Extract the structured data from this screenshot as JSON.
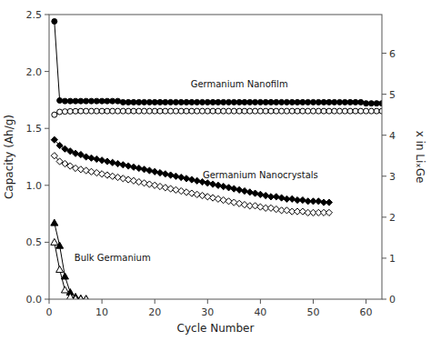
{
  "chart_data": {
    "type": "line",
    "xlabel": "Cycle Number",
    "ylabel": "Capacity (Ah/g)",
    "y2label": "x in LiₓGe",
    "xlim": [
      0,
      63
    ],
    "ylim": [
      0,
      2.5
    ],
    "y2lim": [
      0,
      6.944
    ],
    "xticks": [
      0,
      10,
      20,
      30,
      40,
      50,
      60
    ],
    "yticks": [
      {
        "value": 0.0,
        "label": "0.0"
      },
      0.5,
      {
        "value": 1.0,
        "label": "1.0"
      },
      1.5,
      {
        "value": 2.0,
        "label": "2.0"
      },
      2.5
    ],
    "y2ticks": [
      0,
      1,
      2,
      3,
      4,
      5,
      6
    ],
    "grid": false,
    "annotations": [
      {
        "text": "Germanium Nanofilm",
        "x": 36,
        "y": 1.83
      },
      {
        "text": "Germanium Nanocrystals",
        "x": 40,
        "y": 1.03
      },
      {
        "text": "Bulk Germanium",
        "x": 12,
        "y": 0.3
      }
    ],
    "series": [
      {
        "color": "#000000",
        "marker": "circle",
        "line_style": "solid",
        "x": [
          1,
          2,
          3,
          4,
          5,
          6,
          7,
          8,
          9,
          10,
          11,
          12,
          13,
          14,
          15,
          16,
          17,
          18,
          19,
          20,
          21,
          22,
          23,
          24,
          25,
          26,
          27,
          28,
          29,
          30,
          31,
          32,
          33,
          34,
          35,
          36,
          37,
          38,
          39,
          40,
          41,
          42,
          43,
          44,
          45,
          46,
          47,
          48,
          49,
          50,
          51,
          52,
          53,
          54,
          55,
          56,
          57,
          58,
          59,
          60,
          61,
          62,
          63
        ],
        "values": [
          2.44,
          1.745,
          1.74,
          1.74,
          1.74,
          1.74,
          1.74,
          1.74,
          1.74,
          1.74,
          1.74,
          1.74,
          1.74,
          1.73,
          1.73,
          1.73,
          1.73,
          1.73,
          1.73,
          1.73,
          1.73,
          1.73,
          1.73,
          1.73,
          1.73,
          1.73,
          1.73,
          1.73,
          1.73,
          1.73,
          1.73,
          1.73,
          1.73,
          1.73,
          1.73,
          1.73,
          1.73,
          1.73,
          1.73,
          1.73,
          1.73,
          1.73,
          1.73,
          1.73,
          1.73,
          1.73,
          1.73,
          1.73,
          1.73,
          1.73,
          1.73,
          1.73,
          1.73,
          1.73,
          1.73,
          1.73,
          1.73,
          1.73,
          1.73,
          1.72,
          1.72,
          1.72,
          1.72
        ]
      },
      {
        "color": "#000000",
        "marker": "open-circle",
        "line_style": "solid",
        "x": [
          1,
          2,
          3,
          4,
          5,
          6,
          7,
          8,
          9,
          10,
          11,
          12,
          13,
          14,
          15,
          16,
          17,
          18,
          19,
          20,
          21,
          22,
          23,
          24,
          25,
          26,
          27,
          28,
          29,
          30,
          31,
          32,
          33,
          34,
          35,
          36,
          37,
          38,
          39,
          40,
          41,
          42,
          43,
          44,
          45,
          46,
          47,
          48,
          49,
          50,
          51,
          52,
          53,
          54,
          55,
          56,
          57,
          58,
          59,
          60,
          61,
          62,
          63
        ],
        "values": [
          1.62,
          1.645,
          1.648,
          1.65,
          1.651,
          1.652,
          1.652,
          1.652,
          1.652,
          1.652,
          1.652,
          1.652,
          1.652,
          1.652,
          1.652,
          1.652,
          1.652,
          1.652,
          1.652,
          1.652,
          1.652,
          1.652,
          1.652,
          1.652,
          1.652,
          1.652,
          1.652,
          1.652,
          1.652,
          1.652,
          1.652,
          1.652,
          1.652,
          1.652,
          1.652,
          1.652,
          1.652,
          1.652,
          1.652,
          1.652,
          1.652,
          1.652,
          1.652,
          1.652,
          1.652,
          1.652,
          1.652,
          1.652,
          1.652,
          1.652,
          1.652,
          1.652,
          1.652,
          1.652,
          1.652,
          1.652,
          1.652,
          1.652,
          1.652,
          1.652,
          1.652,
          1.652,
          1.652
        ]
      },
      {
        "color": "#000000",
        "marker": "diamond",
        "line_style": "solid",
        "x": [
          1,
          2,
          3,
          4,
          5,
          6,
          7,
          8,
          9,
          10,
          11,
          12,
          13,
          14,
          15,
          16,
          17,
          18,
          19,
          20,
          21,
          22,
          23,
          24,
          25,
          26,
          27,
          28,
          29,
          30,
          31,
          32,
          33,
          34,
          35,
          36,
          37,
          38,
          39,
          40,
          41,
          42,
          43,
          44,
          45,
          46,
          47,
          48,
          49,
          50,
          51,
          52,
          53
        ],
        "values": [
          1.4,
          1.35,
          1.32,
          1.3,
          1.28,
          1.27,
          1.25,
          1.24,
          1.23,
          1.22,
          1.21,
          1.2,
          1.19,
          1.18,
          1.17,
          1.16,
          1.15,
          1.14,
          1.13,
          1.12,
          1.11,
          1.1,
          1.09,
          1.08,
          1.07,
          1.06,
          1.05,
          1.04,
          1.03,
          1.02,
          1.01,
          1.0,
          0.99,
          0.98,
          0.97,
          0.96,
          0.95,
          0.94,
          0.93,
          0.92,
          0.91,
          0.9,
          0.9,
          0.89,
          0.88,
          0.88,
          0.87,
          0.87,
          0.86,
          0.86,
          0.86,
          0.85,
          0.85
        ]
      },
      {
        "color": "#000000",
        "marker": "open-diamond",
        "line_style": "solid",
        "x": [
          1,
          2,
          3,
          4,
          5,
          6,
          7,
          8,
          9,
          10,
          11,
          12,
          13,
          14,
          15,
          16,
          17,
          18,
          19,
          20,
          21,
          22,
          23,
          24,
          25,
          26,
          27,
          28,
          29,
          30,
          31,
          32,
          33,
          34,
          35,
          36,
          37,
          38,
          39,
          40,
          41,
          42,
          43,
          44,
          45,
          46,
          47,
          48,
          49,
          50,
          51,
          52,
          53
        ],
        "values": [
          1.26,
          1.21,
          1.19,
          1.17,
          1.15,
          1.14,
          1.13,
          1.12,
          1.11,
          1.1,
          1.09,
          1.08,
          1.07,
          1.06,
          1.05,
          1.04,
          1.03,
          1.02,
          1.01,
          1.0,
          0.99,
          0.98,
          0.97,
          0.96,
          0.95,
          0.94,
          0.93,
          0.92,
          0.91,
          0.9,
          0.89,
          0.88,
          0.87,
          0.86,
          0.85,
          0.84,
          0.83,
          0.82,
          0.82,
          0.81,
          0.8,
          0.8,
          0.79,
          0.78,
          0.78,
          0.77,
          0.77,
          0.77,
          0.76,
          0.76,
          0.76,
          0.76,
          0.76
        ]
      },
      {
        "color": "#000000",
        "marker": "triangle",
        "line_style": "solid",
        "x": [
          1,
          2,
          3,
          4,
          5,
          6,
          7
        ],
        "values": [
          0.67,
          0.47,
          0.2,
          0.06,
          0.02,
          0.005,
          0.002
        ]
      },
      {
        "color": "#000000",
        "marker": "open-triangle",
        "line_style": "solid",
        "x": [
          1,
          2,
          3,
          4,
          5,
          6,
          7
        ],
        "values": [
          0.5,
          0.26,
          0.08,
          0.02,
          0.005,
          0.002,
          0.001
        ]
      }
    ]
  }
}
